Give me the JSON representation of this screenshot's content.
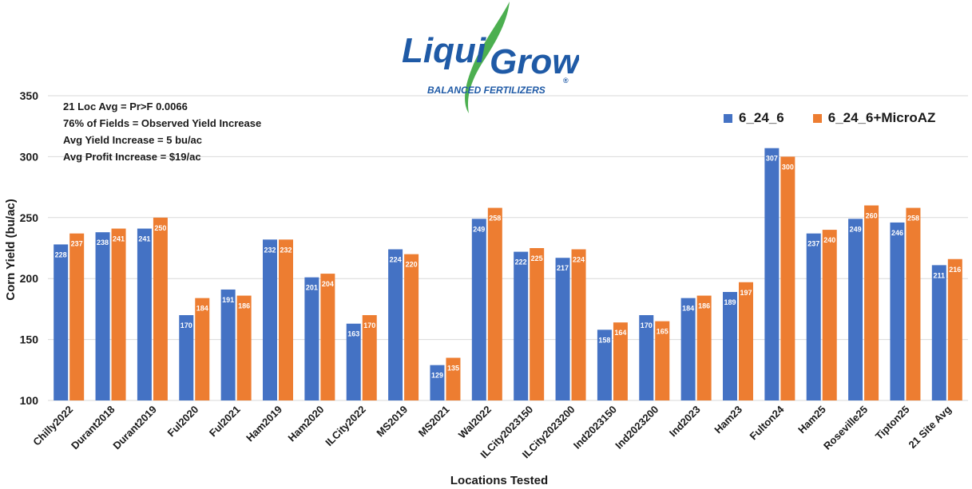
{
  "logo": {
    "text_1": "Liqui",
    "text_2": "Grow",
    "tagline": "BALANCED FERTILIZERS",
    "registered": "®"
  },
  "stats": [
    "21 Loc Avg = Pr>F 0.0066",
    "76% of Fields = Observed Yield Increase",
    "Avg Yield Increase = 5 bu/ac",
    "Avg Profit Increase = $19/ac"
  ],
  "colors": {
    "series1": "#4472C4",
    "series2": "#ED7D31",
    "grid": "#d9d9d9",
    "text": "#1a1a1a"
  },
  "chart_data": {
    "type": "bar",
    "xlabel": "Locations Tested",
    "ylabel": "Corn Yield (bu/ac)",
    "ylim": [
      100,
      350
    ],
    "yticks": [
      100,
      150,
      200,
      250,
      300,
      350
    ],
    "grid": true,
    "legend_position": "top-right",
    "categories": [
      "Chilly2022",
      "Durant2018",
      "Durant2019",
      "Ful2020",
      "Ful2021",
      "Ham2019",
      "Ham2020",
      "ILCity2022",
      "MS2019",
      "MS2021",
      "Wal2022",
      "ILCity2023150",
      "ILCity2023200",
      "Ind2023150",
      "Ind2023200",
      "Ind2023",
      "Ham23",
      "Fulton24",
      "Ham25",
      "Roseville25",
      "Tipton25",
      "21 Site Avg"
    ],
    "series": [
      {
        "name": "6_24_6",
        "values": [
          228,
          238,
          241,
          170,
          191,
          232,
          201,
          163,
          224,
          129,
          249,
          222,
          217,
          158,
          170,
          184,
          189,
          307,
          237,
          249,
          246,
          211
        ]
      },
      {
        "name": "6_24_6+MicroAZ",
        "values": [
          237,
          241,
          250,
          184,
          186,
          232,
          204,
          170,
          220,
          135,
          258,
          225,
          224,
          164,
          165,
          186,
          197,
          300,
          240,
          260,
          258,
          216
        ]
      }
    ]
  }
}
